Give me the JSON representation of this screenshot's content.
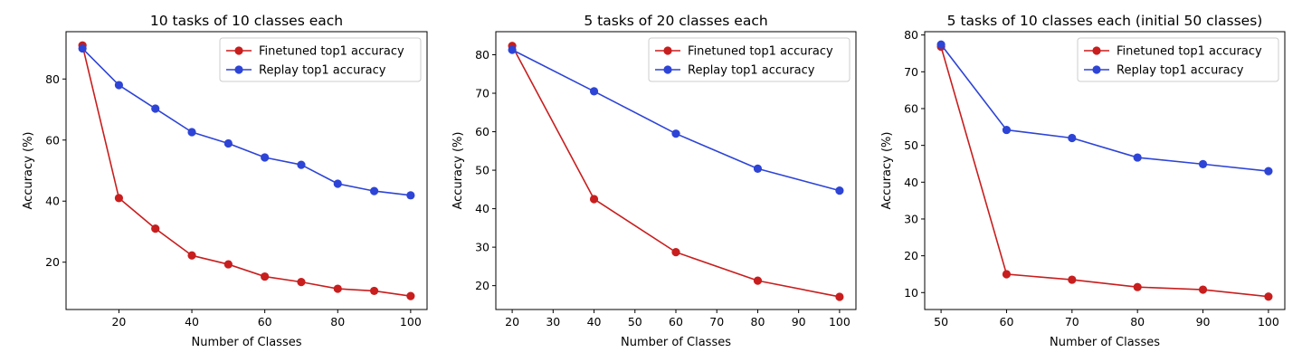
{
  "colors": {
    "finetuned": "#c81e1e",
    "replay": "#2d44d6"
  },
  "chart_data": [
    {
      "type": "line",
      "title": "10 tasks of 10 classes each",
      "xlabel": "Number of Classes",
      "ylabel": "Accuracy (%)",
      "xlim": [
        5.5,
        104.5
      ],
      "ylim": [
        4.5,
        95.5
      ],
      "xticks": [
        20,
        40,
        60,
        80,
        100
      ],
      "yticks": [
        20,
        40,
        60,
        80
      ],
      "x": [
        10,
        20,
        30,
        40,
        50,
        60,
        70,
        80,
        90,
        100
      ],
      "series": [
        {
          "name": "Finetuned top1 accuracy",
          "color": "#c81e1e",
          "values": [
            91.0,
            41.0,
            31.0,
            22.2,
            19.3,
            15.3,
            13.5,
            11.3,
            10.6,
            8.9
          ]
        },
        {
          "name": "Replay top1 accuracy",
          "color": "#2d44d6",
          "values": [
            90.0,
            78.0,
            70.3,
            62.6,
            58.9,
            54.3,
            51.9,
            45.7,
            43.3,
            41.9
          ]
        }
      ],
      "legend": "top-right",
      "grid": false
    },
    {
      "type": "line",
      "title": "5 tasks of 20 classes each",
      "xlabel": "Number of Classes",
      "ylabel": "Accuracy (%)",
      "xlim": [
        16,
        104
      ],
      "ylim": [
        13.8,
        86.0
      ],
      "xticks": [
        20,
        30,
        40,
        50,
        60,
        70,
        80,
        90,
        100
      ],
      "yticks": [
        20,
        30,
        40,
        50,
        60,
        70,
        80
      ],
      "x": [
        20,
        40,
        60,
        80,
        100
      ],
      "series": [
        {
          "name": "Finetuned top1 accuracy",
          "color": "#c81e1e",
          "values": [
            82.3,
            42.5,
            28.7,
            21.3,
            17.1
          ]
        },
        {
          "name": "Replay top1 accuracy",
          "color": "#2d44d6",
          "values": [
            81.3,
            70.5,
            59.5,
            50.4,
            44.7
          ]
        }
      ],
      "legend": "top-right",
      "grid": false
    },
    {
      "type": "line",
      "title": "5 tasks of 10 classes each (initial 50 classes)",
      "xlabel": "Number of Classes",
      "ylabel": "Accuracy (%)",
      "xlim": [
        47.5,
        102.5
      ],
      "ylim": [
        5.4,
        80.9
      ],
      "xticks": [
        50,
        60,
        70,
        80,
        90,
        100
      ],
      "yticks": [
        10,
        20,
        30,
        40,
        50,
        60,
        70,
        80
      ],
      "x": [
        50,
        60,
        70,
        80,
        90,
        100
      ],
      "series": [
        {
          "name": "Finetuned top1 accuracy",
          "color": "#c81e1e",
          "values": [
            76.8,
            15.0,
            13.5,
            11.5,
            10.8,
            8.9
          ]
        },
        {
          "name": "Replay top1 accuracy",
          "color": "#2d44d6",
          "values": [
            77.4,
            54.2,
            52.0,
            46.7,
            44.9,
            43.0
          ]
        }
      ],
      "legend": "top-right",
      "grid": false
    }
  ]
}
